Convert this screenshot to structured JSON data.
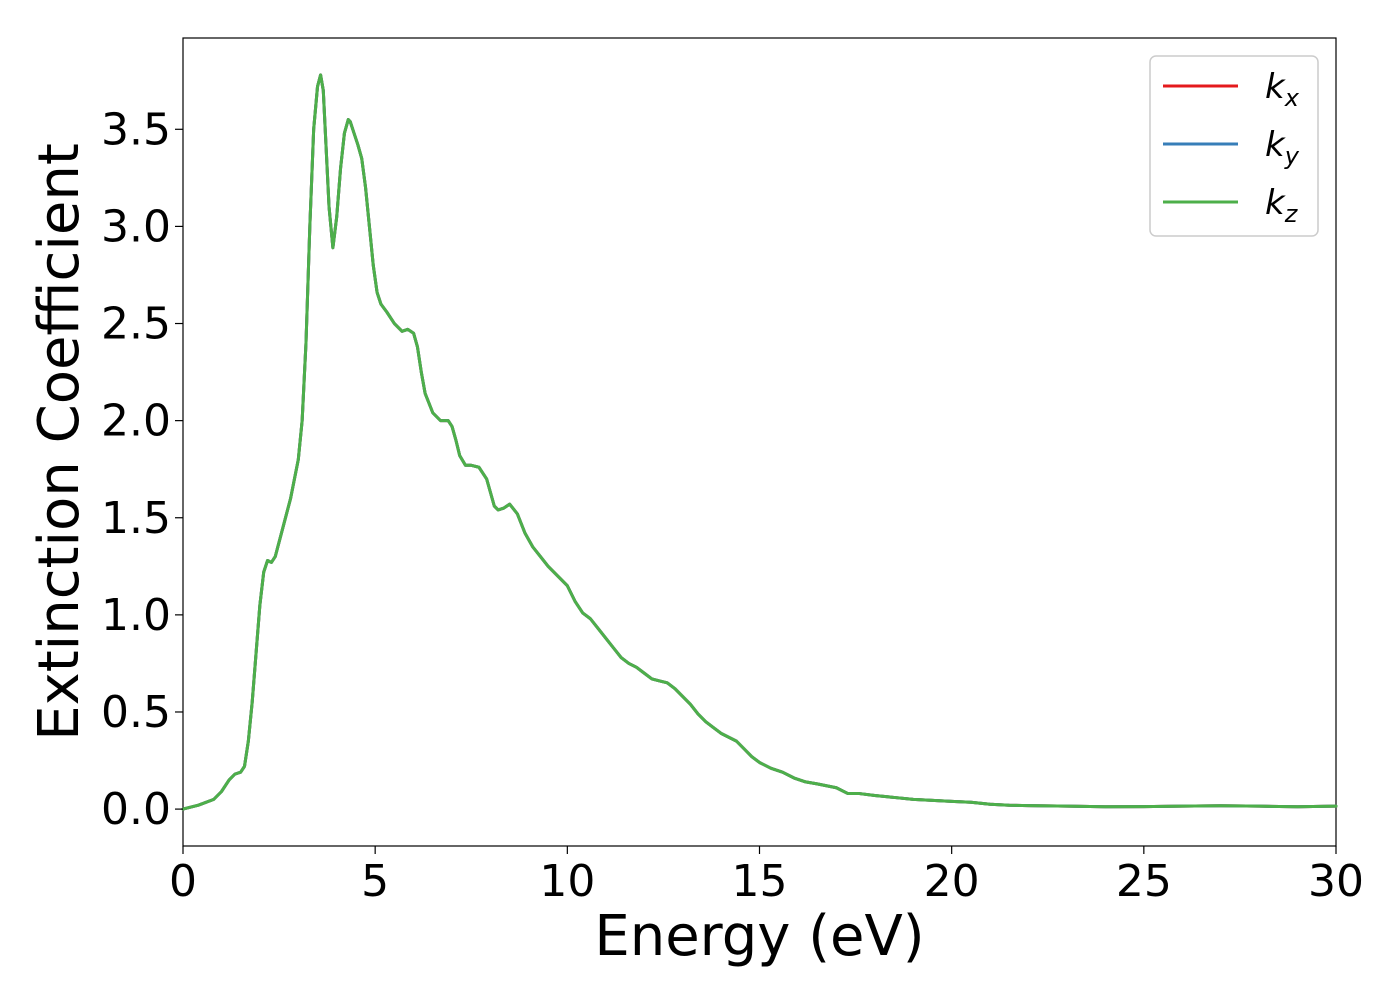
{
  "chart_data": {
    "type": "line",
    "title": "",
    "xlabel": "Energy (eV)",
    "ylabel": "Extinction Coefficient",
    "xlim": [
      0,
      30
    ],
    "ylim": [
      -0.19,
      3.97
    ],
    "xticks": [
      0,
      5,
      10,
      15,
      20,
      25,
      30
    ],
    "xtick_labels": [
      "0",
      "5",
      "10",
      "15",
      "20",
      "25",
      "30"
    ],
    "yticks": [
      0.0,
      0.5,
      1.0,
      1.5,
      2.0,
      2.5,
      3.0,
      3.5
    ],
    "ytick_labels": [
      "0.0",
      "0.5",
      "1.0",
      "1.5",
      "2.0",
      "2.5",
      "3.0",
      "3.5"
    ],
    "grid": false,
    "legend_position": "top-right",
    "series": [
      {
        "name": "k",
        "subscript": "x",
        "color": "#e41a1c",
        "ref": "shared_curve"
      },
      {
        "name": "k",
        "subscript": "y",
        "color": "#377eb8",
        "ref": "shared_curve"
      },
      {
        "name": "k",
        "subscript": "z",
        "color": "#4daf4a",
        "ref": "shared_curve"
      }
    ],
    "shared_curve": {
      "x": [
        0,
        0.4,
        0.8,
        1.0,
        1.2,
        1.35,
        1.5,
        1.6,
        1.7,
        1.8,
        1.9,
        2.0,
        2.1,
        2.2,
        2.3,
        2.4,
        2.6,
        2.8,
        3.0,
        3.1,
        3.2,
        3.3,
        3.4,
        3.5,
        3.58,
        3.65,
        3.7,
        3.8,
        3.9,
        4.0,
        4.1,
        4.2,
        4.3,
        4.35,
        4.45,
        4.55,
        4.65,
        4.75,
        4.85,
        4.95,
        5.05,
        5.15,
        5.3,
        5.5,
        5.7,
        5.85,
        6.0,
        6.1,
        6.2,
        6.3,
        6.5,
        6.7,
        6.9,
        7.0,
        7.1,
        7.2,
        7.35,
        7.5,
        7.7,
        7.9,
        8.0,
        8.1,
        8.2,
        8.35,
        8.5,
        8.7,
        8.9,
        9.1,
        9.3,
        9.5,
        9.8,
        10.0,
        10.2,
        10.4,
        10.6,
        10.8,
        11.0,
        11.2,
        11.4,
        11.6,
        11.8,
        12.0,
        12.2,
        12.4,
        12.6,
        12.8,
        13.0,
        13.2,
        13.4,
        13.6,
        13.8,
        14.0,
        14.2,
        14.4,
        14.6,
        14.8,
        15.0,
        15.3,
        15.6,
        15.9,
        16.2,
        16.5,
        17.0,
        17.3,
        17.6,
        18.0,
        18.5,
        19.0,
        19.5,
        20.0,
        20.5,
        21.0,
        21.5,
        22.0,
        23.0,
        24.0,
        25.0,
        26.0,
        27.0,
        28.0,
        29.0,
        30.0
      ],
      "y": [
        0.0,
        0.02,
        0.05,
        0.09,
        0.15,
        0.18,
        0.19,
        0.22,
        0.35,
        0.55,
        0.8,
        1.05,
        1.22,
        1.28,
        1.27,
        1.3,
        1.45,
        1.6,
        1.8,
        2.0,
        2.4,
        3.0,
        3.5,
        3.72,
        3.78,
        3.7,
        3.5,
        3.1,
        2.89,
        3.05,
        3.3,
        3.48,
        3.55,
        3.54,
        3.48,
        3.42,
        3.35,
        3.2,
        3.0,
        2.8,
        2.66,
        2.6,
        2.56,
        2.5,
        2.46,
        2.47,
        2.45,
        2.38,
        2.25,
        2.14,
        2.04,
        2.0,
        2.0,
        1.97,
        1.9,
        1.82,
        1.77,
        1.77,
        1.76,
        1.7,
        1.63,
        1.56,
        1.54,
        1.55,
        1.57,
        1.52,
        1.42,
        1.35,
        1.3,
        1.25,
        1.19,
        1.15,
        1.07,
        1.01,
        0.98,
        0.93,
        0.88,
        0.83,
        0.78,
        0.75,
        0.73,
        0.7,
        0.67,
        0.66,
        0.65,
        0.62,
        0.58,
        0.54,
        0.49,
        0.45,
        0.42,
        0.39,
        0.37,
        0.35,
        0.31,
        0.27,
        0.24,
        0.21,
        0.19,
        0.16,
        0.14,
        0.13,
        0.11,
        0.08,
        0.08,
        0.07,
        0.06,
        0.05,
        0.045,
        0.04,
        0.035,
        0.025,
        0.02,
        0.018,
        0.015,
        0.012,
        0.013,
        0.015,
        0.017,
        0.015,
        0.012,
        0.015
      ]
    }
  }
}
